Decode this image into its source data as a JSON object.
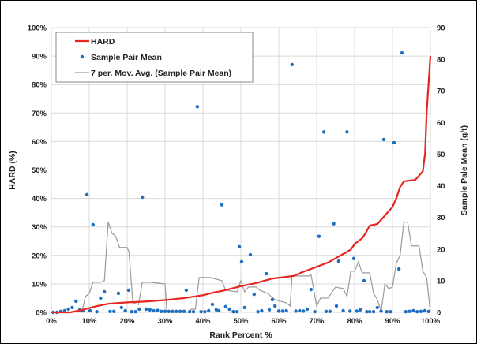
{
  "chart_data": {
    "type": "line",
    "xlabel": "Rank Percent %",
    "ylabel": "HARD (%)",
    "y2label": "Sample Pale Mean (g/t)",
    "xlim": [
      0,
      100
    ],
    "ylim": [
      0,
      100
    ],
    "y2lim": [
      0,
      90
    ],
    "grid": true,
    "legend_position": "top-left",
    "x_ticks": [
      "0%",
      "10%",
      "20%",
      "30%",
      "40%",
      "50%",
      "60%",
      "70%",
      "80%",
      "90%",
      "100%"
    ],
    "y_ticks": [
      "0%",
      "10%",
      "20%",
      "30%",
      "40%",
      "50%",
      "60%",
      "70%",
      "80%",
      "90%",
      "100%"
    ],
    "y2_ticks": [
      "0",
      "10",
      "20",
      "30",
      "40",
      "50",
      "60",
      "70",
      "80",
      "90"
    ],
    "legend": [
      "HARD",
      "Sample Pair Mean",
      "7 per. Mov. Avg. (Sample Pair Mean)"
    ],
    "colors": {
      "hard": "#e8251f",
      "sample": "#1f6fc0",
      "ma": "#9a9a9a",
      "grid": "#d9d9d9"
    },
    "series": [
      {
        "name": "HARD",
        "axis": "left",
        "points": [
          [
            0,
            0
          ],
          [
            5,
            0
          ],
          [
            8,
            0.8
          ],
          [
            10,
            1.5
          ],
          [
            12,
            2.2
          ],
          [
            15,
            3
          ],
          [
            20,
            3.5
          ],
          [
            25,
            3.8
          ],
          [
            30,
            4.3
          ],
          [
            35,
            5
          ],
          [
            40,
            6
          ],
          [
            43,
            7
          ],
          [
            45,
            7.5
          ],
          [
            48,
            8.5
          ],
          [
            50,
            9.2
          ],
          [
            53,
            10
          ],
          [
            55,
            10.6
          ],
          [
            58,
            11.8
          ],
          [
            61,
            12.3
          ],
          [
            64,
            12.8
          ],
          [
            66,
            14
          ],
          [
            68,
            15
          ],
          [
            70,
            16
          ],
          [
            73,
            17.5
          ],
          [
            75,
            19
          ],
          [
            77,
            20.5
          ],
          [
            79,
            22
          ],
          [
            80,
            24
          ],
          [
            82,
            26
          ],
          [
            83,
            28
          ],
          [
            84,
            30.5
          ],
          [
            86,
            31
          ],
          [
            88,
            34
          ],
          [
            90,
            37
          ],
          [
            91,
            40
          ],
          [
            92,
            44
          ],
          [
            93,
            46
          ],
          [
            96,
            46.5
          ],
          [
            97,
            48
          ],
          [
            98,
            49.5
          ],
          [
            98.6,
            56
          ],
          [
            99,
            70
          ],
          [
            99.5,
            80
          ],
          [
            100,
            90
          ]
        ]
      },
      {
        "name": "Sample Pair Mean",
        "axis": "right",
        "points": [
          [
            0.5,
            0
          ],
          [
            1.5,
            0
          ],
          [
            2.5,
            0.3
          ],
          [
            3.5,
            0.5
          ],
          [
            4.5,
            1
          ],
          [
            5.5,
            1.5
          ],
          [
            6.5,
            3.5
          ],
          [
            7.5,
            0.8
          ],
          [
            8.3,
            0.5
          ],
          [
            9.4,
            37.2
          ],
          [
            10.2,
            0.5
          ],
          [
            11,
            27.7
          ],
          [
            12,
            0.2
          ],
          [
            13,
            4.5
          ],
          [
            14,
            6.5
          ],
          [
            15.5,
            0.3
          ],
          [
            16.5,
            0.3
          ],
          [
            17.7,
            6
          ],
          [
            18.5,
            1.5
          ],
          [
            19.5,
            0.5
          ],
          [
            20.4,
            7
          ],
          [
            21.2,
            0.2
          ],
          [
            22.2,
            0.2
          ],
          [
            23.2,
            1
          ],
          [
            24,
            36.4
          ],
          [
            25,
            1
          ],
          [
            26,
            0.8
          ],
          [
            27,
            0.5
          ],
          [
            28,
            0.6
          ],
          [
            29,
            0.3
          ],
          [
            30,
            0.3
          ],
          [
            31,
            0.3
          ],
          [
            32,
            0.3
          ],
          [
            33,
            0.3
          ],
          [
            34,
            0.3
          ],
          [
            35,
            0.3
          ],
          [
            35.6,
            7
          ],
          [
            36.5,
            0.2
          ],
          [
            37.5,
            0.2
          ],
          [
            38.5,
            65
          ],
          [
            39.5,
            0.2
          ],
          [
            40.5,
            0.2
          ],
          [
            41.5,
            0.5
          ],
          [
            42.5,
            2.5
          ],
          [
            43.5,
            0.8
          ],
          [
            44.2,
            0.5
          ],
          [
            45,
            34
          ],
          [
            46,
            1.8
          ],
          [
            47,
            1
          ],
          [
            48,
            0.2
          ],
          [
            49,
            0.2
          ],
          [
            49.6,
            20.7
          ],
          [
            50.2,
            16
          ],
          [
            51,
            1.5
          ],
          [
            52.5,
            18.2
          ],
          [
            53.5,
            5.7
          ],
          [
            54.5,
            0.2
          ],
          [
            55.5,
            0.5
          ],
          [
            56.7,
            12.2
          ],
          [
            57.5,
            0.8
          ],
          [
            58.3,
            4
          ],
          [
            59,
            2
          ],
          [
            60,
            0.4
          ],
          [
            61,
            0.4
          ],
          [
            62,
            0.5
          ],
          [
            63.5,
            78.3
          ],
          [
            64.5,
            0.4
          ],
          [
            65.5,
            0.5
          ],
          [
            66.5,
            0.4
          ],
          [
            67.5,
            1
          ],
          [
            68.5,
            7.2
          ],
          [
            69.5,
            0.2
          ],
          [
            70.6,
            24
          ],
          [
            71.9,
            57
          ],
          [
            72.5,
            0.3
          ],
          [
            73.5,
            0.3
          ],
          [
            74.5,
            28
          ],
          [
            75.2,
            2
          ],
          [
            75.8,
            16.2
          ],
          [
            77,
            0.5
          ],
          [
            78,
            57
          ],
          [
            78.8,
            0.4
          ],
          [
            79.8,
            17
          ],
          [
            80.6,
            0.4
          ],
          [
            81.5,
            0.8
          ],
          [
            82.5,
            10
          ],
          [
            83.2,
            0.2
          ],
          [
            84,
            0.2
          ],
          [
            85,
            0.2
          ],
          [
            86,
            1.5
          ],
          [
            87,
            0.4
          ],
          [
            87.7,
            54.6
          ],
          [
            88.5,
            0.2
          ],
          [
            89.5,
            0.2
          ],
          [
            90.4,
            53.6
          ],
          [
            91.7,
            13.7
          ],
          [
            92.5,
            82
          ],
          [
            93.5,
            0.2
          ],
          [
            94.5,
            0.3
          ],
          [
            95.5,
            0.5
          ],
          [
            96.5,
            0.2
          ],
          [
            97.5,
            0.3
          ],
          [
            98.5,
            0.5
          ],
          [
            99.5,
            0.3
          ]
        ]
      },
      {
        "name": "7 per. Mov. Avg. (Sample Pair Mean)",
        "axis": "right",
        "points": [
          [
            8,
            0
          ],
          [
            9,
            5
          ],
          [
            10,
            6
          ],
          [
            11,
            9.5
          ],
          [
            13,
            9.5
          ],
          [
            14,
            10
          ],
          [
            15,
            28.5
          ],
          [
            16,
            25
          ],
          [
            17,
            24
          ],
          [
            18,
            20.5
          ],
          [
            20,
            20.5
          ],
          [
            20.5,
            19
          ],
          [
            21.5,
            3
          ],
          [
            23,
            2.5
          ],
          [
            24,
            9.5
          ],
          [
            26,
            9.5
          ],
          [
            30,
            9
          ],
          [
            30.5,
            0
          ],
          [
            36,
            0
          ],
          [
            37,
            1
          ],
          [
            38,
            1
          ],
          [
            39,
            11
          ],
          [
            42,
            11
          ],
          [
            45,
            10
          ],
          [
            46,
            7
          ],
          [
            49,
            6.5
          ],
          [
            50,
            10
          ],
          [
            51,
            6.5
          ],
          [
            52,
            8
          ],
          [
            54,
            8
          ],
          [
            55,
            7
          ],
          [
            57,
            6
          ],
          [
            59,
            4
          ],
          [
            62,
            3
          ],
          [
            63,
            2
          ],
          [
            63.5,
            11.5
          ],
          [
            68,
            11.5
          ],
          [
            68.5,
            12
          ],
          [
            70,
            2
          ],
          [
            71,
            4.5
          ],
          [
            73,
            4.5
          ],
          [
            75,
            8
          ],
          [
            77,
            7.5
          ],
          [
            78,
            5
          ],
          [
            79,
            13
          ],
          [
            80,
            13
          ],
          [
            81,
            16
          ],
          [
            82,
            12.5
          ],
          [
            84,
            12.5
          ],
          [
            85,
            6
          ],
          [
            86,
            4
          ],
          [
            87,
            0.5
          ],
          [
            88,
            9
          ],
          [
            89,
            7.5
          ],
          [
            90,
            8
          ],
          [
            91,
            15.5
          ],
          [
            92,
            18
          ],
          [
            93,
            28.5
          ],
          [
            94,
            28.5
          ],
          [
            95,
            21
          ],
          [
            97,
            21
          ],
          [
            98,
            13
          ],
          [
            99,
            11
          ],
          [
            100,
            0
          ]
        ]
      }
    ]
  }
}
